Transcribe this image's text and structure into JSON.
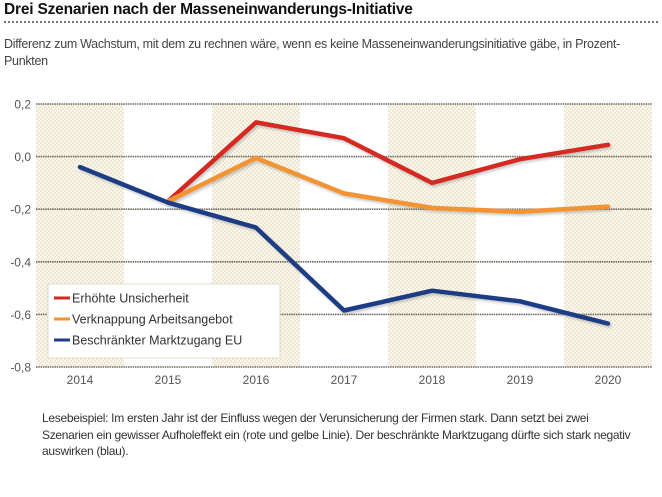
{
  "header": {
    "title": "Drei Szenarien nach der Masseneinwanderungs-Initiative",
    "subtitle": "Differenz zum Wachstum, mit dem zu rechnen wäre, wenn es keine Masseneinwanderungsinitiative gäbe, in Prozent-Punkten"
  },
  "footer": {
    "note": "Lesebeispiel: Im ersten Jahr ist der Einfluss wegen der Verunsicherung der Firmen stark. Dann setzt bei zwei Szenarien ein gewisser Aufholeffekt ein (rote und gelbe Linie). Der beschränkte Marktzugang dürfte sich stark negativ auswirken (blau)."
  },
  "chart_data": {
    "type": "line",
    "title": "Drei Szenarien nach der Masseneinwanderungs-Initiative",
    "subtitle": "Differenz zum Wachstum, mit dem zu rechnen wäre, wenn es keine Masseneinwanderungsinitiative gäbe, in Prozent-Punkten",
    "xlabel": "",
    "ylabel": "",
    "categories": [
      "2014",
      "2015",
      "2016",
      "2017",
      "2018",
      "2019",
      "2020"
    ],
    "ylim": [
      -0.8,
      0.2
    ],
    "yticks": [
      0.2,
      0.0,
      -0.2,
      -0.4,
      -0.6,
      -0.8
    ],
    "ytick_labels": [
      "0,2",
      "0,0",
      "-0,2",
      "-0,4",
      "-0,6",
      "-0,8"
    ],
    "grid": "horizontal",
    "alternating_column_shading": true,
    "legend_position": "bottom-left",
    "series": [
      {
        "name": "Erhöhte Unsicherheit",
        "color": "#d42a22",
        "values": [
          null,
          -0.17,
          0.13,
          0.07,
          -0.1,
          -0.01,
          0.045
        ]
      },
      {
        "name": "Verknappung Arbeitsangebot",
        "color": "#f39431",
        "values": [
          null,
          -0.17,
          -0.005,
          -0.14,
          -0.195,
          -0.21,
          -0.19
        ]
      },
      {
        "name": "Beschränkter Marktzugang EU",
        "color": "#1f3e85",
        "values": [
          -0.04,
          -0.175,
          -0.27,
          -0.585,
          -0.51,
          -0.55,
          -0.635
        ]
      }
    ]
  }
}
